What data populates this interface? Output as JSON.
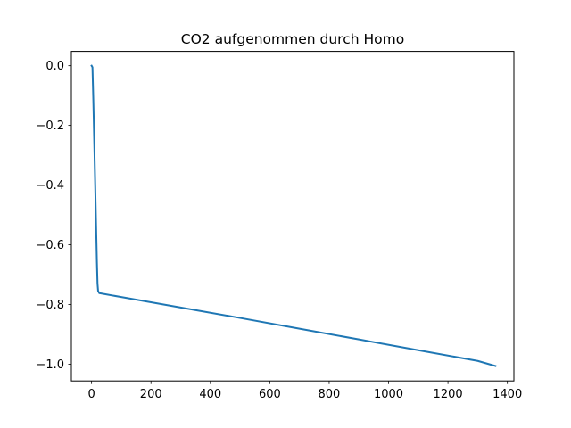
{
  "chart_data": {
    "type": "line",
    "title": "CO2 aufgenommen durch Homo",
    "xlabel": "",
    "ylabel": "",
    "xlim": [
      -68,
      1422
    ],
    "ylim": [
      -1.056,
      0.048
    ],
    "x_ticks": [
      0,
      200,
      400,
      600,
      800,
      1000,
      1200,
      1400
    ],
    "x_tick_labels": [
      "0",
      "200",
      "400",
      "600",
      "800",
      "1000",
      "1200",
      "1400"
    ],
    "y_ticks": [
      0.0,
      -0.2,
      -0.4,
      -0.6,
      -0.8,
      -1.0
    ],
    "y_tick_labels": [
      "0.0",
      "−0.2",
      "−0.4",
      "−0.6",
      "−0.8",
      "−1.0"
    ],
    "grid": false,
    "legend": "none",
    "series": [
      {
        "color": "#1f77b4",
        "x": [
          0,
          3,
          6,
          10,
          14,
          18,
          20,
          22,
          26,
          100,
          300,
          500,
          700,
          900,
          1100,
          1300,
          1360
        ],
        "y": [
          0.0,
          -0.005,
          -0.12,
          -0.3,
          -0.48,
          -0.66,
          -0.73,
          -0.755,
          -0.762,
          -0.775,
          -0.81,
          -0.845,
          -0.881,
          -0.917,
          -0.953,
          -0.989,
          -1.006
        ]
      }
    ]
  }
}
